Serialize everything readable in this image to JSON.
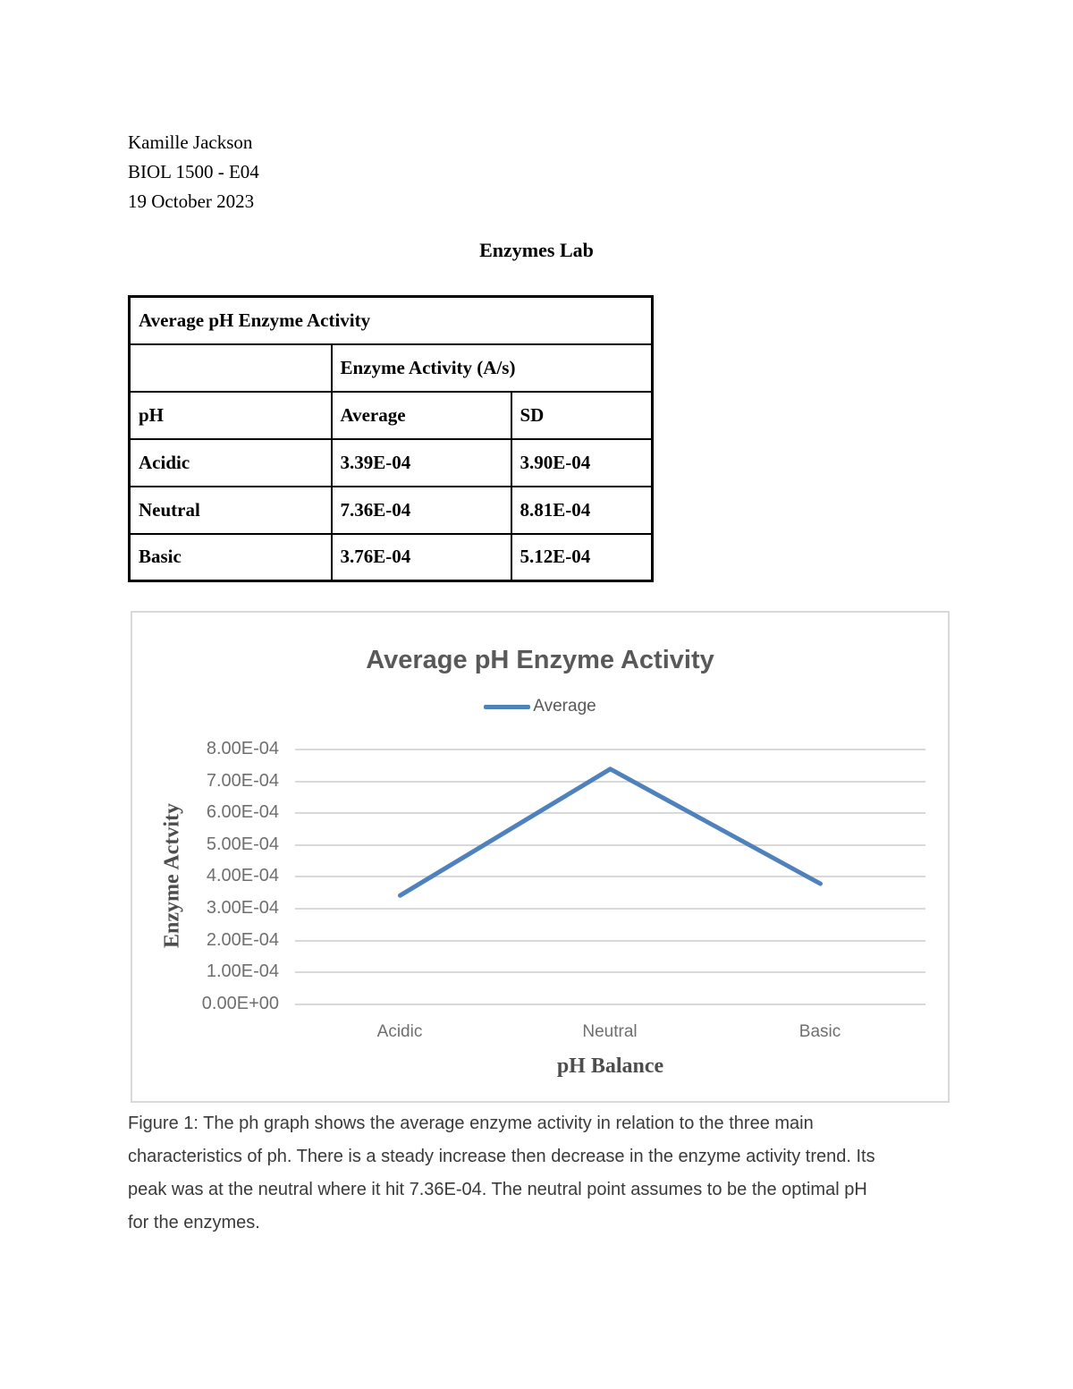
{
  "page": {
    "header_lines": [
      "Kamille Jackson",
      "BIOL 1500 - E04",
      "19 October 2023"
    ],
    "doc_title": "Enzymes Lab"
  },
  "table": {
    "title": "Average pH Enzyme Activity",
    "group_header": "Enzyme Activity (A/s)",
    "col_headers": [
      "pH",
      "Average",
      "SD"
    ],
    "rows": [
      {
        "ph": "Acidic",
        "average": "3.39E-04",
        "sd": "3.90E-04"
      },
      {
        "ph": "Neutral",
        "average": "7.36E-04",
        "sd": "8.81E-04"
      },
      {
        "ph": "Basic",
        "average": "3.76E-04",
        "sd": "5.12E-04"
      }
    ]
  },
  "chart_data": {
    "type": "line",
    "title": "Average pH Enzyme Activity",
    "legend_entries": [
      "Average"
    ],
    "legend_position": "top",
    "categories": [
      "Acidic",
      "Neutral",
      "Basic"
    ],
    "series": [
      {
        "name": "Average",
        "values": [
          0.000339,
          0.000736,
          0.000376
        ]
      }
    ],
    "xlabel": "pH Balance",
    "ylabel": "Enzyme Actvity",
    "ylim": [
      0,
      0.0008
    ],
    "ytick_labels": [
      "0.00E+00",
      "1.00E-04",
      "2.00E-04",
      "3.00E-04",
      "4.00E-04",
      "5.00E-04",
      "6.00E-04",
      "7.00E-04",
      "8.00E-04"
    ],
    "grid": true,
    "line_color": "#4F81BD",
    "gridline_color": "#d9d9d9",
    "title_color": "#595959"
  },
  "caption": {
    "lines": [
      "Figure 1: The ph graph shows the average enzyme activity in relation to the three main",
      "characteristics of ph. There is a steady increase then decrease in the enzyme activity trend. Its",
      "peak was at the neutral where it hit 7.36E-04. The neutral point assumes to be the optimal pH",
      "for the enzymes."
    ]
  }
}
